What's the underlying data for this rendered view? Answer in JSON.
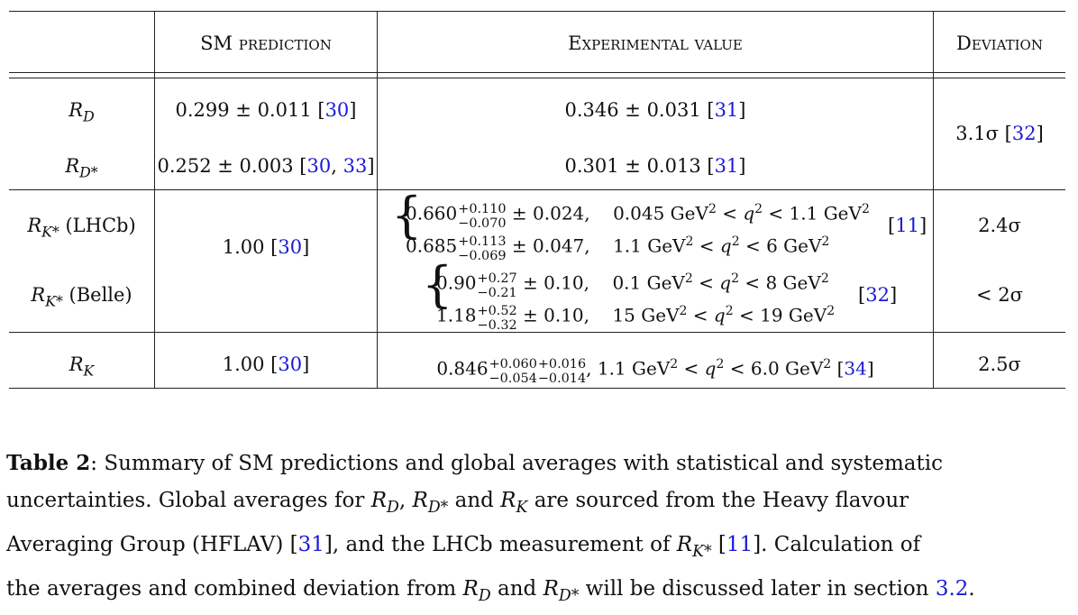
{
  "table": {
    "headers": {
      "sm": "SM prediction",
      "exp": "Experimental value",
      "dev": "Deviation"
    },
    "rows": {
      "rd": {
        "label_base": "R",
        "label_sub": "D",
        "sm": "0.299 ± 0.011 [",
        "sm_cite": "30",
        "sm_end": "]",
        "exp": "0.346 ± 0.031 [",
        "exp_cite": "31",
        "exp_end": "]"
      },
      "rdstar": {
        "label_base": "R",
        "label_sub": "D*",
        "sm": "0.252 ± 0.003 [",
        "sm_cite1": "30",
        "sm_sep": ", ",
        "sm_cite2": "33",
        "sm_end": "]",
        "exp": "0.301 ± 0.013 [",
        "exp_cite": "31",
        "exp_end": "]"
      },
      "rd_dev": {
        "value": "3.1σ [",
        "cite": "32",
        "end": "]"
      },
      "rks_lhcb": {
        "label_base": "R",
        "label_sub": "K*",
        "label_tail": " (LHCb)",
        "line1_central": "0.660",
        "line1_up": "+0.110",
        "line1_down": "−0.070",
        "line1_rest": "± 0.024,",
        "line1_range": "0.045 GeV",
        "line1_range_mid": " < q",
        "line1_range_end": " < 1.1 GeV",
        "line2_central": "0.685",
        "line2_up": "+0.113",
        "line2_down": "−0.069",
        "line2_rest": "± 0.047,",
        "line2_range": "1.1 GeV",
        "line2_range_mid": " < q",
        "line2_range_end": " < 6 GeV",
        "cite_open": "[",
        "cite": "11",
        "cite_close": "]",
        "dev": "2.4σ"
      },
      "rks_sm": {
        "value": "1.00 [",
        "cite": "30",
        "end": "]"
      },
      "rks_belle": {
        "label_base": "R",
        "label_sub": "K*",
        "label_tail": " (Belle)",
        "line1_central": "0.90",
        "line1_up": "+0.27",
        "line1_down": "−0.21",
        "line1_rest": "± 0.10,",
        "line1_range": "0.1 GeV",
        "line1_range_mid": " < q",
        "line1_range_end": " < 8 GeV",
        "line2_central": "1.18",
        "line2_up": "+0.52",
        "line2_down": "−0.32",
        "line2_rest": "± 0.10,",
        "line2_range": "15 GeV",
        "line2_range_mid": " < q",
        "line2_range_end": " < 19 GeV",
        "cite_open": "[",
        "cite": "32",
        "cite_close": "]",
        "dev": "< 2σ"
      },
      "rk": {
        "label_base": "R",
        "label_sub": "K",
        "sm": "1.00 [",
        "sm_cite": "30",
        "sm_end": "]",
        "exp_central": "0.846",
        "exp_up1": "+0.060",
        "exp_down1": "−0.054",
        "exp_up2": "+0.016",
        "exp_down2": "−0.014",
        "exp_range": ",   1.1 GeV",
        "exp_range_mid": " < q",
        "exp_range_end": " < 6.0 GeV",
        "exp_cite_open": " [",
        "exp_cite": "34",
        "exp_cite_close": "]",
        "dev": "2.5σ"
      }
    }
  },
  "caption": {
    "label": "Table 2",
    "l1": ": Summary of SM predictions and global averages with statistical and systematic",
    "l2a": "uncertainties.  Global averages for ",
    "l2b": ", ",
    "l2c": " and ",
    "l2d": " are sourced from the Heavy flavour",
    "l3a": "Averaging Group (HFLAV) [",
    "l3_cite1": "31",
    "l3b": "], and the LHCb measurement of ",
    "l3c": " [",
    "l3_cite2": "11",
    "l3d": "].  Calculation of",
    "l4a": "the averages and combined deviation from ",
    "l4b": " and ",
    "l4c": " will be discussed later in section ",
    "l4_ref": "3.2",
    "l4d": "."
  }
}
